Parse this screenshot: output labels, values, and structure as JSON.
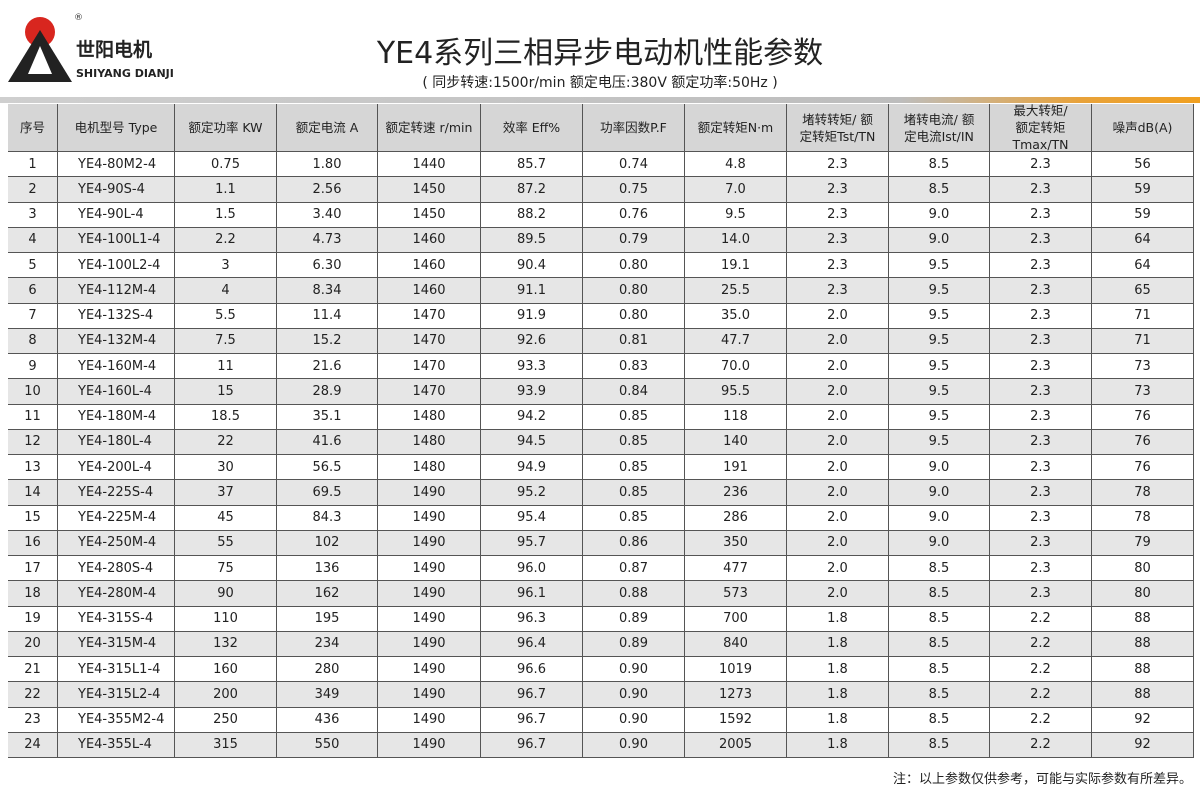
{
  "header": {
    "brand": "世阳电机",
    "brand_en": "SHIYANG DIANJI",
    "registered": "®",
    "title": "YE4系列三相异步电动机性能参数",
    "subtitle": "( 同步转速:1500r/min   额定电压:380V   额定功率:50Hz )"
  },
  "table": {
    "columns": [
      [
        "序号"
      ],
      [
        "电机型号 Type"
      ],
      [
        "额定功率 KW"
      ],
      [
        "额定电流 A"
      ],
      [
        "额定转速 r/min"
      ],
      [
        "效率 Eff%"
      ],
      [
        "功率因数P.F"
      ],
      [
        "额定转矩N·m"
      ],
      [
        "堵转转矩/ 额",
        "定转矩Tst/TN"
      ],
      [
        "堵转电流/ 额",
        "定电流Ist/IN"
      ],
      [
        "最大转矩/",
        "额定转矩Tmax/TN"
      ],
      [
        "噪声dB(A)"
      ]
    ],
    "rows": [
      [
        "1",
        "YE4-80M2-4",
        "0.75",
        "1.80",
        "1440",
        "85.7",
        "0.74",
        "4.8",
        "2.3",
        "8.5",
        "2.3",
        "56"
      ],
      [
        "2",
        "YE4-90S-4",
        "1.1",
        "2.56",
        "1450",
        "87.2",
        "0.75",
        "7.0",
        "2.3",
        "8.5",
        "2.3",
        "59"
      ],
      [
        "3",
        "YE4-90L-4",
        "1.5",
        "3.40",
        "1450",
        "88.2",
        "0.76",
        "9.5",
        "2.3",
        "9.0",
        "2.3",
        "59"
      ],
      [
        "4",
        "YE4-100L1-4",
        "2.2",
        "4.73",
        "1460",
        "89.5",
        "0.79",
        "14.0",
        "2.3",
        "9.0",
        "2.3",
        "64"
      ],
      [
        "5",
        "YE4-100L2-4",
        "3",
        "6.30",
        "1460",
        "90.4",
        "0.80",
        "19.1",
        "2.3",
        "9.5",
        "2.3",
        "64"
      ],
      [
        "6",
        "YE4-112M-4",
        "4",
        "8.34",
        "1460",
        "91.1",
        "0.80",
        "25.5",
        "2.3",
        "9.5",
        "2.3",
        "65"
      ],
      [
        "7",
        "YE4-132S-4",
        "5.5",
        "11.4",
        "1470",
        "91.9",
        "0.80",
        "35.0",
        "2.0",
        "9.5",
        "2.3",
        "71"
      ],
      [
        "8",
        "YE4-132M-4",
        "7.5",
        "15.2",
        "1470",
        "92.6",
        "0.81",
        "47.7",
        "2.0",
        "9.5",
        "2.3",
        "71"
      ],
      [
        "9",
        "YE4-160M-4",
        "11",
        "21.6",
        "1470",
        "93.3",
        "0.83",
        "70.0",
        "2.0",
        "9.5",
        "2.3",
        "73"
      ],
      [
        "10",
        "YE4-160L-4",
        "15",
        "28.9",
        "1470",
        "93.9",
        "0.84",
        "95.5",
        "2.0",
        "9.5",
        "2.3",
        "73"
      ],
      [
        "11",
        "YE4-180M-4",
        "18.5",
        "35.1",
        "1480",
        "94.2",
        "0.85",
        "118",
        "2.0",
        "9.5",
        "2.3",
        "76"
      ],
      [
        "12",
        "YE4-180L-4",
        "22",
        "41.6",
        "1480",
        "94.5",
        "0.85",
        "140",
        "2.0",
        "9.5",
        "2.3",
        "76"
      ],
      [
        "13",
        "YE4-200L-4",
        "30",
        "56.5",
        "1480",
        "94.9",
        "0.85",
        "191",
        "2.0",
        "9.0",
        "2.3",
        "76"
      ],
      [
        "14",
        "YE4-225S-4",
        "37",
        "69.5",
        "1490",
        "95.2",
        "0.85",
        "236",
        "2.0",
        "9.0",
        "2.3",
        "78"
      ],
      [
        "15",
        "YE4-225M-4",
        "45",
        "84.3",
        "1490",
        "95.4",
        "0.85",
        "286",
        "2.0",
        "9.0",
        "2.3",
        "78"
      ],
      [
        "16",
        "YE4-250M-4",
        "55",
        "102",
        "1490",
        "95.7",
        "0.86",
        "350",
        "2.0",
        "9.0",
        "2.3",
        "79"
      ],
      [
        "17",
        "YE4-280S-4",
        "75",
        "136",
        "1490",
        "96.0",
        "0.87",
        "477",
        "2.0",
        "8.5",
        "2.3",
        "80"
      ],
      [
        "18",
        "YE4-280M-4",
        "90",
        "162",
        "1490",
        "96.1",
        "0.88",
        "573",
        "2.0",
        "8.5",
        "2.3",
        "80"
      ],
      [
        "19",
        "YE4-315S-4",
        "110",
        "195",
        "1490",
        "96.3",
        "0.89",
        "700",
        "1.8",
        "8.5",
        "2.2",
        "88"
      ],
      [
        "20",
        "YE4-315M-4",
        "132",
        "234",
        "1490",
        "96.4",
        "0.89",
        "840",
        "1.8",
        "8.5",
        "2.2",
        "88"
      ],
      [
        "21",
        "YE4-315L1-4",
        "160",
        "280",
        "1490",
        "96.6",
        "0.90",
        "1019",
        "1.8",
        "8.5",
        "2.2",
        "88"
      ],
      [
        "22",
        "YE4-315L2-4",
        "200",
        "349",
        "1490",
        "96.7",
        "0.90",
        "1273",
        "1.8",
        "8.5",
        "2.2",
        "88"
      ],
      [
        "23",
        "YE4-355M2-4",
        "250",
        "436",
        "1490",
        "96.7",
        "0.90",
        "1592",
        "1.8",
        "8.5",
        "2.2",
        "92"
      ],
      [
        "24",
        "YE4-355L-4",
        "315",
        "550",
        "1490",
        "96.7",
        "0.90",
        "2005",
        "1.8",
        "8.5",
        "2.2",
        "92"
      ]
    ]
  },
  "footnote": "注：以上参数仅供参考，可能与实际参数有所差异。"
}
